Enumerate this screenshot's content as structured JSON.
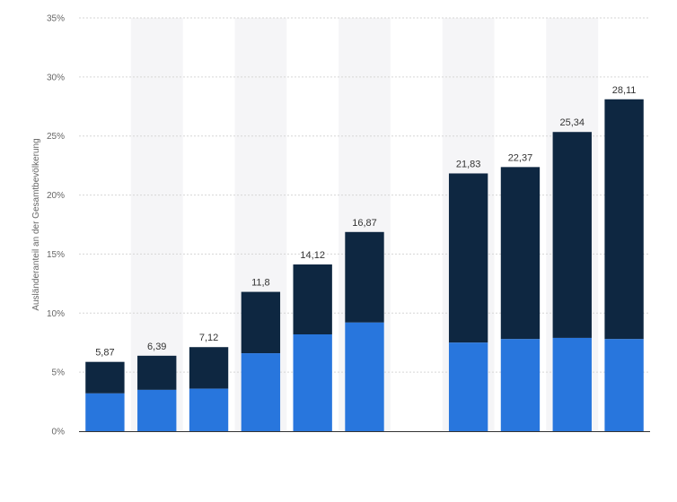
{
  "chart_data": {
    "type": "bar",
    "stacked": true,
    "ylabel": "Ausländeranteil an der Gesamtbevölkerung",
    "ylim": [
      0,
      35
    ],
    "yticks": [
      0,
      5,
      10,
      15,
      20,
      25,
      30,
      35
    ],
    "ytick_labels": [
      "0%",
      "5%",
      "10%",
      "15%",
      "20%",
      "25%",
      "30%",
      "35%"
    ],
    "grid": true,
    "legend": "none",
    "colors": {
      "lower": "#2876dd",
      "upper": "#0e2741",
      "band": "#f5f5f7"
    },
    "categories": [
      "",
      "",
      "",
      "",
      "",
      "",
      "",
      "",
      "",
      ""
    ],
    "gap_after_index": 5,
    "series": [
      {
        "values": [
          3.2,
          3.5,
          3.6,
          6.6,
          8.2,
          9.2,
          7.5,
          7.8,
          7.9,
          7.8
        ]
      },
      {
        "values": [
          2.67,
          2.89,
          3.52,
          5.2,
          5.92,
          7.67,
          14.33,
          14.57,
          17.44,
          20.31
        ]
      }
    ],
    "totals": [
      5.87,
      6.39,
      7.12,
      11.8,
      14.12,
      16.87,
      21.83,
      22.37,
      25.34,
      28.11
    ],
    "total_labels": [
      "5,87",
      "6,39",
      "7,12",
      "11,8",
      "14,12",
      "16,87",
      "21,83",
      "22,37",
      "25,34",
      "28,11"
    ]
  }
}
